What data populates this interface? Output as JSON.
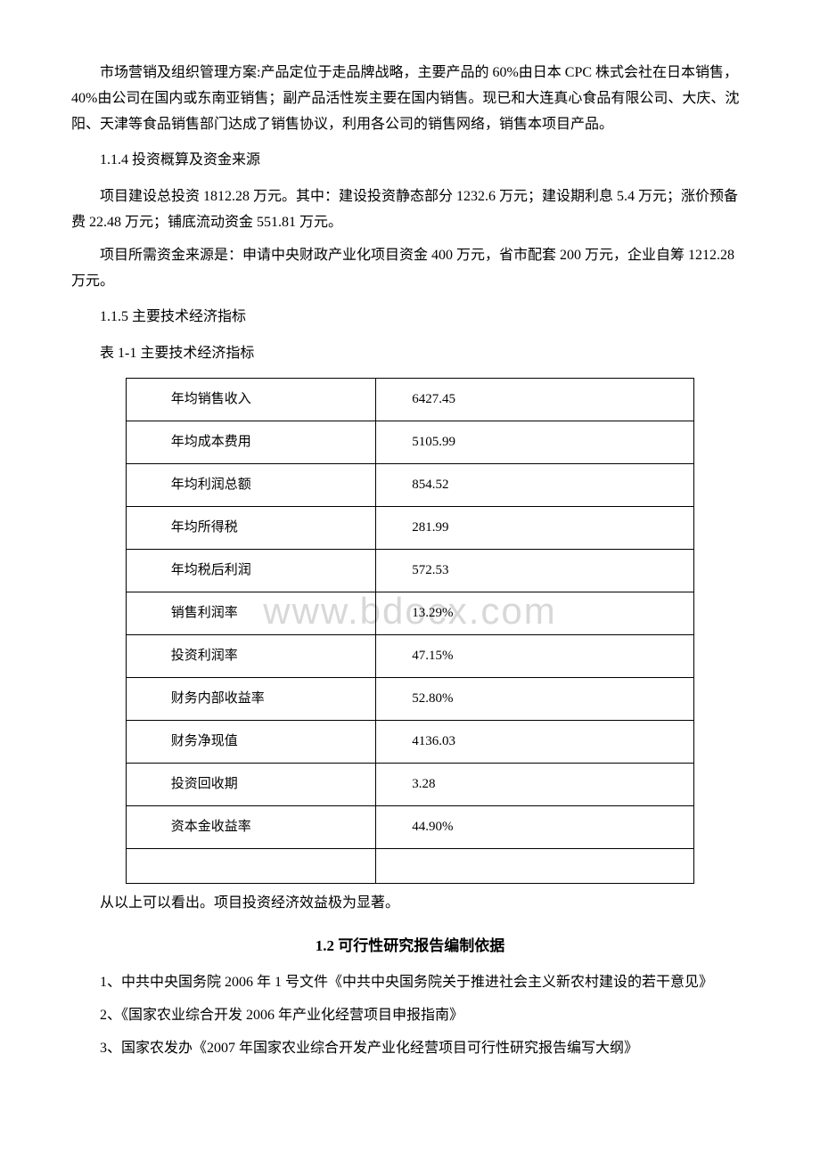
{
  "watermark": "www.bdocx.com",
  "paragraphs": {
    "p1": "市场营销及组织管理方案:产品定位于走品牌战略，主要产品的 60%由日本 CPC 株式会社在日本销售，40%由公司在国内或东南亚销售；副产品活性炭主要在国内销售。现已和大连真心食品有限公司、大庆、沈阳、天津等食品销售部门达成了销售协议，利用各公司的销售网络，销售本项目产品。",
    "s114": "1.1.4 投资概算及资金来源",
    "p2": "项目建设总投资 1812.28 万元。其中：建设投资静态部分 1232.6 万元；建设期利息 5.4 万元；涨价预备费 22.48 万元；铺底流动资金 551.81 万元。",
    "p3": "项目所需资金来源是：申请中央财政产业化项目资金 400 万元，省市配套 200 万元，企业自筹 1212.28 万元。",
    "s115": "1.1.5 主要技术经济指标",
    "table_title": "表 1-1 主要技术经济指标",
    "p4": "从以上可以看出。项目投资经济效益极为显著。",
    "heading12": "1.2 可行性研究报告编制依据",
    "item1": "1、中共中央国务院 2006 年 1 号文件《中共中央国务院关于推进社会主义新农村建设的若干意见》",
    "item2": "2、《国家农业综合开发 2006 年产业化经营项目申报指南》",
    "item3": "3、国家农发办《2007 年国家农业综合开发产业化经营项目可行性研究报告编写大纲》"
  },
  "table": {
    "rows": [
      {
        "label": "年均销售收入",
        "value": "6427.45"
      },
      {
        "label": "年均成本费用",
        "value": "5105.99"
      },
      {
        "label": "年均利润总额",
        "value": "854.52"
      },
      {
        "label": "年均所得税",
        "value": "281.99"
      },
      {
        "label": "年均税后利润",
        "value": "572.53"
      },
      {
        "label": "销售利润率",
        "value": "13.29%"
      },
      {
        "label": "投资利润率",
        "value": "47.15%"
      },
      {
        "label": "财务内部收益率",
        "value": "52.80%"
      },
      {
        "label": "财务净现值",
        "value": "4136.03"
      },
      {
        "label": "投资回收期",
        "value": "3.28"
      },
      {
        "label": "资本金收益率",
        "value": "44.90%"
      }
    ],
    "border_color": "#000000",
    "cell_fontsize": 15,
    "label_col_width_pct": 44,
    "value_col_width_pct": 56
  },
  "colors": {
    "text": "#000000",
    "background": "#ffffff",
    "watermark": "#d8d8d8"
  },
  "typography": {
    "body_font": "SimSun",
    "body_fontsize": 16,
    "heading_fontsize": 17,
    "line_height": 1.8
  }
}
